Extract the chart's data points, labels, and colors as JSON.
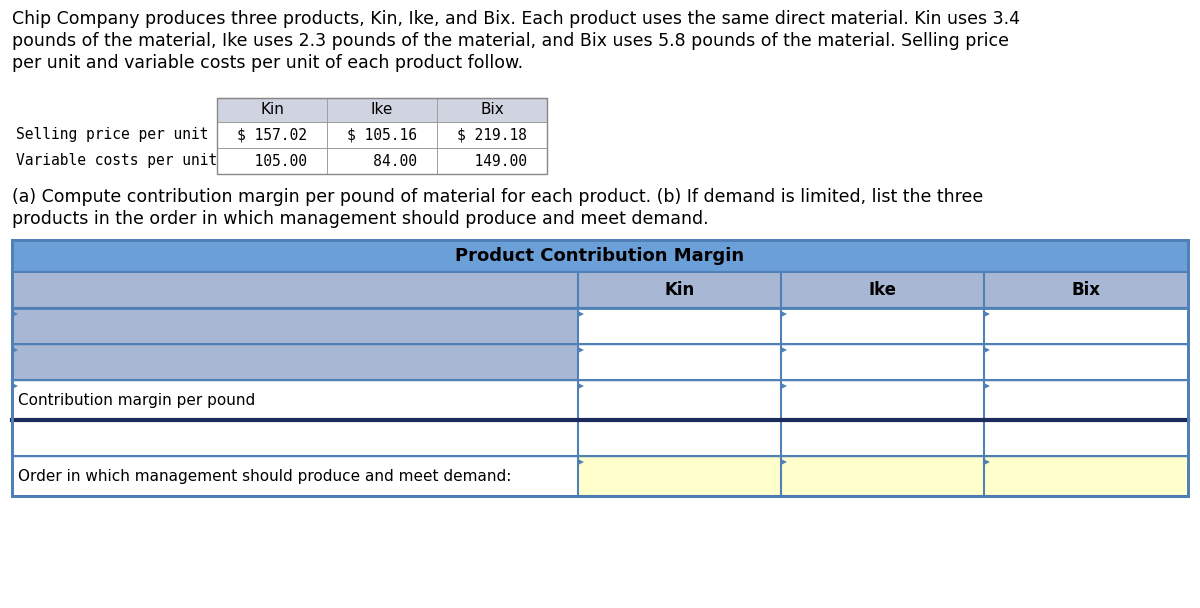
{
  "title_text_line1": "Chip Company produces three products, Kin, Ike, and Bix. Each product uses the same direct material. Kin uses 3.4",
  "title_text_line2": "pounds of the material, Ike uses 2.3 pounds of the material, and Bix uses 5.8 pounds of the material. Selling price",
  "title_text_line3": "per unit and variable costs per unit of each product follow.",
  "small_table": {
    "header_row": [
      "",
      "Kin",
      "Ike",
      "Bix"
    ],
    "rows": [
      [
        "Selling price per unit",
        "$ 157.02",
        "$ 105.16",
        "$ 219.18"
      ],
      [
        "Variable costs per unit",
        "  105.00",
        "   84.00",
        "  149.00"
      ]
    ],
    "header_bg": "#d0d4e0",
    "border_color": "#888888"
  },
  "instruction_line1": "(a) Compute contribution margin per pound of material for each product. (b) If demand is limited, list the three",
  "instruction_line2": "products in the order in which management should produce and meet demand.",
  "main_table": {
    "title": "Product Contribution Margin",
    "title_bg": "#6a9fd8",
    "header_row_labels": [
      "Kin",
      "Ike",
      "Bix"
    ],
    "header_bg": "#a8b8d4",
    "data_rows": [
      {
        "label": "",
        "has_arrow": true
      },
      {
        "label": "",
        "has_arrow": true
      },
      {
        "label": "Contribution margin per pound",
        "has_arrow": true,
        "thick_bottom": true
      },
      {
        "label": "",
        "has_arrow": false
      },
      {
        "label": "Order in which management should produce and meet demand:",
        "has_arrow": false,
        "yellow_cells": true
      }
    ],
    "border_color": "#5080b8",
    "dark_border_color": "#1a2a5a",
    "yellow_color": "#ffffcc"
  },
  "bg_color": "#ffffff",
  "text_color": "#000000",
  "fig_width": 12.0,
  "fig_height": 6.08,
  "dpi": 100
}
